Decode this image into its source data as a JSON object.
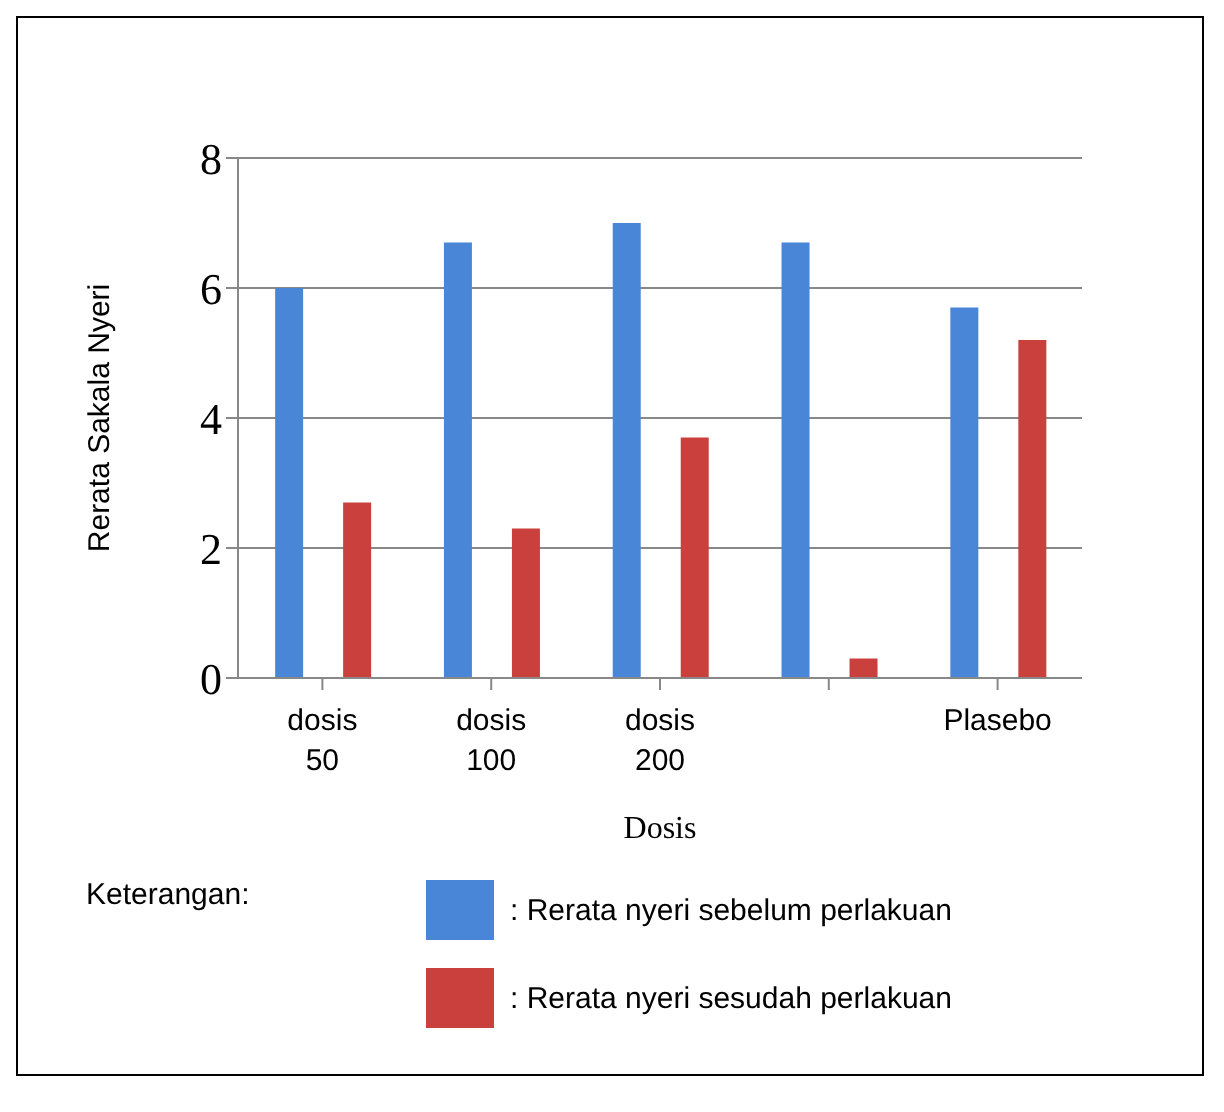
{
  "chart_data": {
    "type": "bar",
    "xlabel": "Dosis",
    "ylabel": "Rerata Sakala Nyeri",
    "legend_title": "Keterangan:",
    "categories": [
      "dosis 50",
      "dosis 100",
      "dosis 200",
      null,
      "Plasebo"
    ],
    "series": [
      {
        "name": ": Rerata nyeri sebelum perlakuan",
        "color": "#4a86d8",
        "values": [
          6.0,
          6.7,
          7.0,
          6.7,
          5.7
        ]
      },
      {
        "name": ": Rerata nyeri sesudah perlakuan",
        "color": "#c9403c",
        "values": [
          2.7,
          2.3,
          3.7,
          0.3,
          5.2
        ]
      }
    ],
    "ylim": [
      0,
      8
    ],
    "yticks": [
      0,
      2,
      4,
      6,
      8
    ],
    "grid": "y",
    "legend": "bottom"
  }
}
